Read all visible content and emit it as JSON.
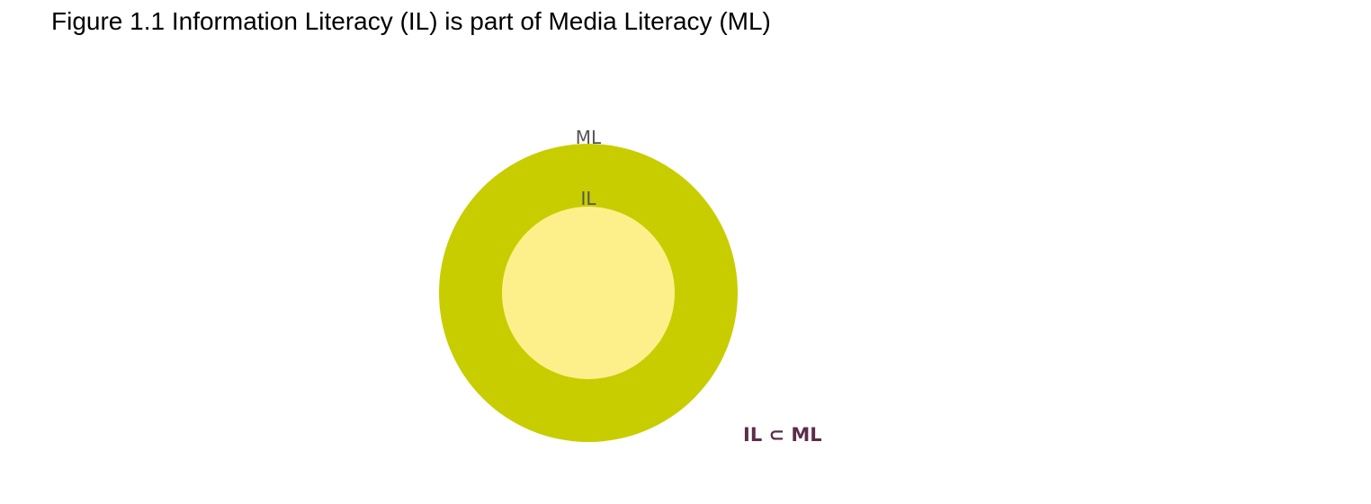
{
  "figure": {
    "title": "Figure 1.1 Information Literacy (IL) is part of Media Literacy (ML)"
  },
  "diagram": {
    "outer": {
      "label": "ML",
      "color": "#c8cd00"
    },
    "inner": {
      "label": "IL",
      "color": "#fdf08a"
    },
    "relation": {
      "text": "IL ⊂ ML",
      "color": "#5b2d4a"
    }
  }
}
